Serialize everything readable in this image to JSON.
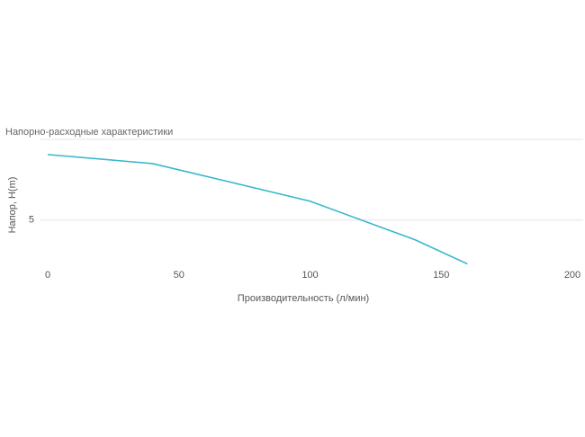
{
  "chart_data": {
    "type": "line",
    "title": "Напорно-расходные характеристики",
    "x_label": "Производительность (л/мин)",
    "y_label": "Напор, H(m)",
    "x": [
      0,
      40,
      100,
      140,
      160
    ],
    "series": [
      {
        "name": "H",
        "color": "#36b8cc",
        "values": [
          9.06,
          8.5,
          6.17,
          3.78,
          2.28
        ]
      }
    ],
    "xlim": [
      0,
      200
    ],
    "xticks": [
      0,
      50,
      100,
      150,
      200
    ],
    "ylim": [
      2.2,
      10
    ],
    "yticks": [
      5
    ],
    "grid": true
  }
}
